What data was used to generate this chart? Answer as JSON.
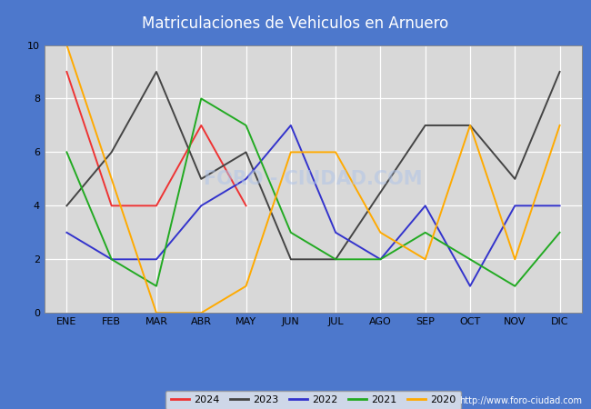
{
  "title": "Matriculaciones de Vehiculos en Arnuero",
  "header_bg_color": "#4d78cc",
  "footer_bg_color": "#4d78cc",
  "title_text_color": "#ffffff",
  "plot_bg_color": "#d8d8d8",
  "grid_color": "#ffffff",
  "ylim": [
    0,
    10
  ],
  "yticks": [
    0,
    2,
    4,
    6,
    8,
    10
  ],
  "months": [
    "ENE",
    "FEB",
    "MAR",
    "ABR",
    "MAY",
    "JUN",
    "JUL",
    "AGO",
    "SEP",
    "OCT",
    "NOV",
    "DIC"
  ],
  "url_text": "http://www.foro-ciudad.com",
  "series": {
    "2024": {
      "color": "#ee3333",
      "data": [
        9,
        4,
        4,
        7,
        4,
        null,
        null,
        null,
        null,
        null,
        null,
        null
      ]
    },
    "2023": {
      "color": "#444444",
      "data": [
        4,
        6,
        9,
        5,
        6,
        2,
        2,
        null,
        7,
        7,
        5,
        9
      ]
    },
    "2022": {
      "color": "#3333cc",
      "data": [
        3,
        2,
        2,
        4,
        5,
        7,
        3,
        2,
        4,
        1,
        4,
        4
      ]
    },
    "2021": {
      "color": "#22aa22",
      "data": [
        6,
        2,
        1,
        8,
        7,
        3,
        2,
        2,
        3,
        2,
        1,
        3
      ]
    },
    "2020": {
      "color": "#ffaa00",
      "data": [
        10,
        5,
        0,
        0,
        1,
        6,
        6,
        3,
        2,
        7,
        2,
        7
      ]
    }
  },
  "legend_order": [
    "2024",
    "2023",
    "2022",
    "2021",
    "2020"
  ],
  "watermark_text": "FORO - CIUDAD.COM",
  "watermark_color": "#b0c4e8",
  "watermark_alpha": 0.55,
  "title_fontsize": 12,
  "tick_fontsize": 8,
  "legend_fontsize": 8,
  "url_fontsize": 7,
  "linewidth": 1.4
}
